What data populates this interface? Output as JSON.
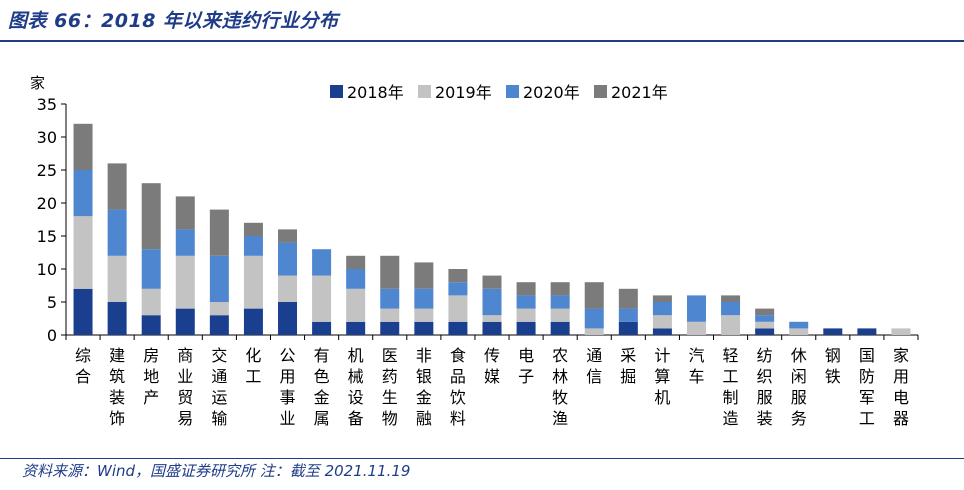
{
  "header": {
    "title": "图表 66：2018 年以来违约行业分布"
  },
  "footer": {
    "source": "资料来源：Wind，国盛证券研究所 注：截至 2021.11.19"
  },
  "colors": {
    "2018年": "#1a3f8f",
    "2019年": "#c3c3c3",
    "2020年": "#4f86d0",
    "2021年": "#7b7b7b",
    "accent": "#1f3c88"
  },
  "chart_data": {
    "type": "bar",
    "stacked": true,
    "ylabel": "家",
    "ylim": [
      0,
      35
    ],
    "yticks": [
      0,
      5,
      10,
      15,
      20,
      25,
      30,
      35
    ],
    "grid": false,
    "legend_position": "top-right",
    "categories": [
      "综合",
      "建筑装饰",
      "房地产",
      "商业贸易",
      "交通运输",
      "化工",
      "公用事业",
      "有色金属",
      "机械设备",
      "医药生物",
      "非银金融",
      "食品饮料",
      "传媒",
      "电子",
      "农林牧渔",
      "通信",
      "采掘",
      "计算机",
      "汽车",
      "轻工制造",
      "纺织服装",
      "休闲服务",
      "钢铁",
      "国防军工",
      "家用电器"
    ],
    "series": [
      {
        "name": "2018年",
        "values": [
          7,
          5,
          3,
          4,
          3,
          4,
          5,
          2,
          2,
          2,
          2,
          2,
          2,
          2,
          2,
          0,
          2,
          1,
          0,
          0,
          1,
          0,
          1,
          1,
          0
        ]
      },
      {
        "name": "2019年",
        "values": [
          11,
          7,
          4,
          8,
          2,
          8,
          4,
          7,
          5,
          2,
          2,
          4,
          1,
          2,
          2,
          1,
          0,
          2,
          2,
          3,
          1,
          1,
          0,
          0,
          1
        ]
      },
      {
        "name": "2020年",
        "values": [
          7,
          7,
          6,
          4,
          7,
          3,
          5,
          4,
          3,
          3,
          3,
          2,
          4,
          2,
          2,
          3,
          2,
          2,
          4,
          2,
          1,
          1,
          0,
          0,
          0
        ]
      },
      {
        "name": "2021年",
        "values": [
          7,
          7,
          10,
          5,
          7,
          2,
          2,
          0,
          2,
          5,
          4,
          2,
          2,
          2,
          2,
          4,
          3,
          1,
          0,
          1,
          1,
          0,
          0,
          0,
          0
        ]
      }
    ]
  }
}
